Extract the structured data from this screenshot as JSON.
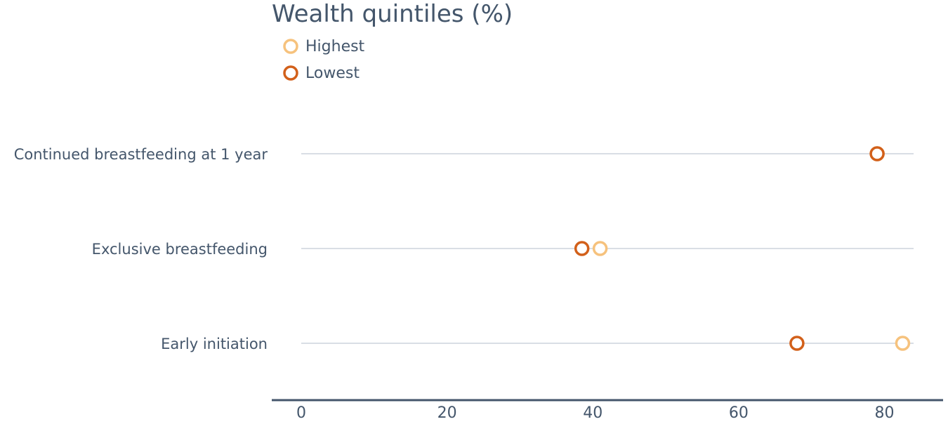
{
  "colors": {
    "text": "#44566b",
    "grid": "#d9dee5",
    "axis": "#44566b",
    "highest": "#f6c27d",
    "lowest": "#d2601a"
  },
  "chart_data": {
    "type": "scatter",
    "title": "Wealth quintiles (%)",
    "xlabel": "",
    "ylabel": "",
    "xlim": [
      0,
      84
    ],
    "xticks": [
      "0",
      "20",
      "40",
      "60",
      "80"
    ],
    "categories": [
      "Continued breastfeeding at 1 year",
      "Exclusive breastfeeding",
      "Early initiation"
    ],
    "legend_position": "top-left",
    "series": [
      {
        "name": "Highest",
        "color_key": "highest",
        "values": [
          79,
          41,
          82.5
        ]
      },
      {
        "name": "Lowest",
        "color_key": "lowest",
        "values": [
          79,
          38.5,
          68
        ]
      }
    ]
  }
}
